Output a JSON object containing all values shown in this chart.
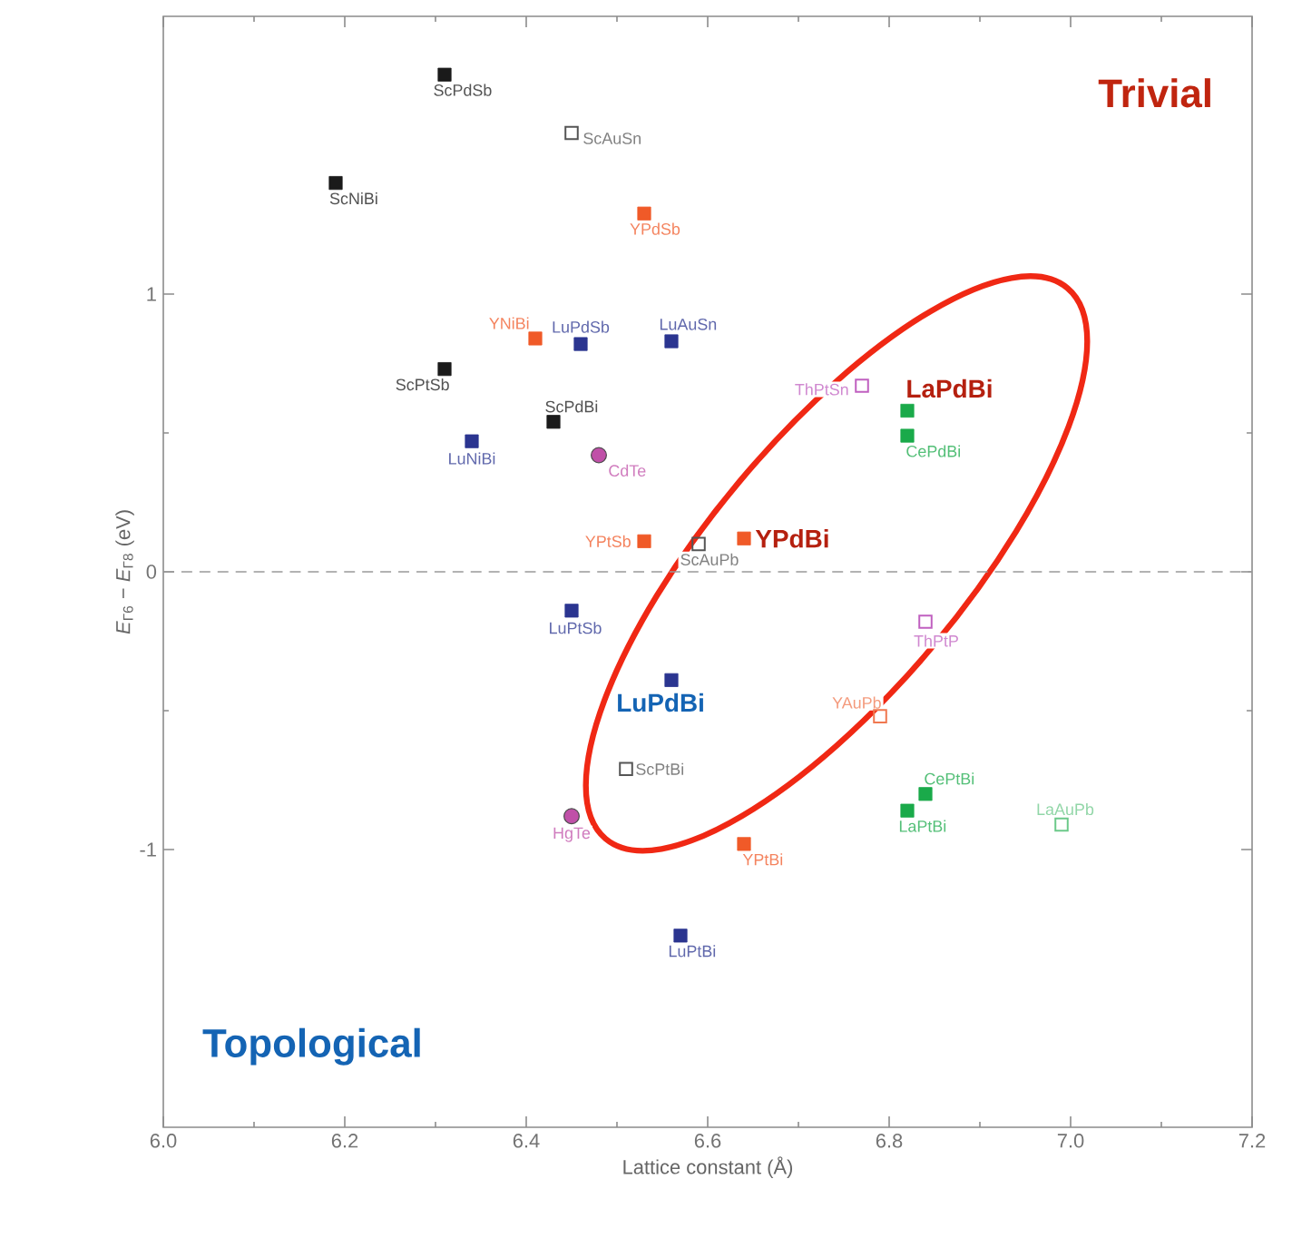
{
  "chart_data": {
    "type": "scatter",
    "xlabel": "Lattice constant (Å)",
    "ylabel": "*E*$_{Γ6}$ − *E*$_{Γ8}$ (eV)",
    "xlim": [
      6.0,
      7.2
    ],
    "ylim": [
      -2,
      2
    ],
    "xticks": [
      {
        "value": 6.0,
        "label": "6.0"
      },
      {
        "value": 6.2,
        "label": "6.2"
      },
      {
        "value": 6.4,
        "label": "6.4"
      },
      {
        "value": 6.6,
        "label": "6.6"
      },
      {
        "value": 6.8,
        "label": "6.8"
      },
      {
        "value": 7.0,
        "label": "7.0"
      },
      {
        "value": 7.2,
        "label": "7.2"
      }
    ],
    "yticks": [
      -1,
      0,
      1
    ],
    "grid": false,
    "legend": false,
    "ref_lines": [
      {
        "axis": "y",
        "value": 0,
        "line_style": "dashed",
        "color": "#999999"
      }
    ],
    "series": [
      {
        "color": "#1a1a1a",
        "marker": "square",
        "x": [
          6.31,
          6.19,
          6.31,
          6.43
        ],
        "values": [
          1.79,
          1.4,
          0.73,
          0.54
        ]
      },
      {
        "color": "#555555",
        "marker": "square",
        "x": [
          6.45,
          6.59,
          6.51
        ],
        "values": [
          1.58,
          0.1,
          -0.71
        ]
      },
      {
        "color": "#f05a28",
        "marker": "square",
        "x": [
          6.53,
          6.41,
          6.53,
          6.64,
          6.64
        ],
        "values": [
          1.29,
          0.84,
          0.11,
          0.12,
          -0.98
        ]
      },
      {
        "color": "#f07850",
        "marker": "square",
        "x": [
          6.79
        ],
        "values": [
          -0.52
        ]
      },
      {
        "color": "#2b3590",
        "marker": "square",
        "x": [
          6.46,
          6.56,
          6.34,
          6.45,
          6.56,
          6.57
        ],
        "values": [
          0.82,
          0.83,
          0.47,
          -0.14,
          -0.39,
          -1.31
        ]
      },
      {
        "color": "#1aaa4a",
        "marker": "square",
        "x": [
          6.82,
          6.82,
          6.84,
          6.82
        ],
        "values": [
          0.58,
          0.49,
          -0.8,
          -0.86
        ]
      },
      {
        "color": "#6cc98a",
        "marker": "square",
        "x": [
          6.99
        ],
        "values": [
          -0.91
        ]
      },
      {
        "color": "#c060c0",
        "marker": "square",
        "x": [
          6.77,
          6.84
        ],
        "values": [
          0.67,
          -0.18
        ]
      },
      {
        "color": "#c050a8",
        "marker": "circle",
        "x": [
          6.48,
          6.45
        ],
        "values": [
          0.42,
          -0.88
        ]
      }
    ],
    "annotations": [
      {
        "text": "ScPdSb",
        "x": 6.31,
        "y": 1.79
      },
      {
        "text": "ScNiBi",
        "x": 6.19,
        "y": 1.4
      },
      {
        "text": "ScPtSb",
        "x": 6.31,
        "y": 0.73
      },
      {
        "text": "ScPdBi",
        "x": 6.43,
        "y": 0.54
      },
      {
        "text": "ScAuSn",
        "x": 6.45,
        "y": 1.58
      },
      {
        "text": "ScAuPb",
        "x": 6.59,
        "y": 0.1
      },
      {
        "text": "ScPtBi",
        "x": 6.51,
        "y": -0.71
      },
      {
        "text": "YPdSb",
        "x": 6.53,
        "y": 1.29
      },
      {
        "text": "YNiBi",
        "x": 6.41,
        "y": 0.84
      },
      {
        "text": "YPtSb",
        "x": 6.53,
        "y": 0.11
      },
      {
        "text": "YPdBi",
        "x": 6.64,
        "y": 0.12
      },
      {
        "text": "YPtBi",
        "x": 6.64,
        "y": -0.98
      },
      {
        "text": "YAuPb",
        "x": 6.79,
        "y": -0.52
      },
      {
        "text": "LuPdSb",
        "x": 6.46,
        "y": 0.82
      },
      {
        "text": "LuAuSn",
        "x": 6.56,
        "y": 0.83
      },
      {
        "text": "LuNiBi",
        "x": 6.34,
        "y": 0.47
      },
      {
        "text": "LuPtSb",
        "x": 6.45,
        "y": -0.14
      },
      {
        "text": "LuPdBi",
        "x": 6.56,
        "y": -0.39
      },
      {
        "text": "LuPtBi",
        "x": 6.57,
        "y": -1.31
      },
      {
        "text": "LaPdBi",
        "x": 6.82,
        "y": 0.58
      },
      {
        "text": "CePdBi",
        "x": 6.82,
        "y": 0.49
      },
      {
        "text": "CePtBi",
        "x": 6.84,
        "y": -0.8
      },
      {
        "text": "LaPtBi",
        "x": 6.82,
        "y": -0.86
      },
      {
        "text": "LaAuPb",
        "x": 6.99,
        "y": -0.91
      },
      {
        "text": "ThPtSn",
        "x": 6.77,
        "y": 0.67
      },
      {
        "text": "ThPtP",
        "x": 6.84,
        "y": -0.18
      },
      {
        "text": "CdTe",
        "x": 6.48,
        "y": 0.42
      },
      {
        "text": "HgTe",
        "x": 6.45,
        "y": -0.88
      },
      "Trivial",
      "Topological"
    ]
  }
}
